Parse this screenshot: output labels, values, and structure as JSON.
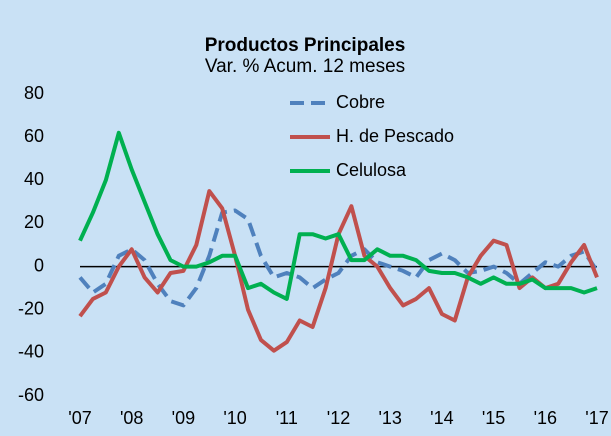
{
  "chart_data": {
    "type": "line",
    "title": "Productos Principales",
    "subtitle": "Var. % Acum. 12 meses",
    "x": [
      2007,
      2007.25,
      2007.5,
      2007.75,
      2008,
      2008.25,
      2008.5,
      2008.75,
      2009,
      2009.25,
      2009.5,
      2009.75,
      2010,
      2010.25,
      2010.5,
      2010.75,
      2011,
      2011.25,
      2011.5,
      2011.75,
      2012,
      2012.25,
      2012.5,
      2012.75,
      2013,
      2013.25,
      2013.5,
      2013.75,
      2014,
      2014.25,
      2014.5,
      2014.75,
      2015,
      2015.25,
      2015.5,
      2015.75,
      2016,
      2016.25,
      2016.5,
      2016.75,
      2017
    ],
    "series": [
      {
        "name": "Cobre",
        "color": "#4f81bd",
        "style": "dashed",
        "values": [
          -5,
          -12,
          -8,
          5,
          8,
          3,
          -8,
          -16,
          -18,
          -10,
          5,
          25,
          26,
          22,
          5,
          -5,
          -3,
          -5,
          -10,
          -6,
          -3,
          5,
          8,
          2,
          0,
          -2,
          -5,
          3,
          6,
          3,
          -3,
          -2,
          0,
          -3,
          -8,
          -3,
          2,
          0,
          5,
          7,
          -2
        ]
      },
      {
        "name": "H. de Pescado",
        "color": "#c0504d",
        "style": "solid",
        "values": [
          -23,
          -15,
          -12,
          0,
          8,
          -5,
          -12,
          -3,
          -2,
          10,
          35,
          27,
          5,
          -20,
          -34,
          -39,
          -35,
          -25,
          -28,
          -10,
          15,
          28,
          5,
          0,
          -10,
          -18,
          -15,
          -10,
          -22,
          -25,
          -5,
          5,
          12,
          10,
          -10,
          -5,
          -10,
          -8,
          2,
          10,
          -5
        ]
      },
      {
        "name": "Celulosa",
        "color": "#00b050",
        "style": "solid",
        "values": [
          12,
          25,
          40,
          62,
          45,
          30,
          15,
          3,
          0,
          0,
          2,
          5,
          5,
          -10,
          -8,
          -12,
          -15,
          15,
          15,
          13,
          15,
          3,
          3,
          8,
          5,
          5,
          3,
          -2,
          -3,
          -3,
          -5,
          -8,
          -5,
          -8,
          -8,
          -6,
          -10,
          -10,
          -10,
          -12,
          -10
        ]
      }
    ],
    "xlim": [
      2007,
      2017
    ],
    "xticks": [
      {
        "value": 2007,
        "label": "'07"
      },
      {
        "value": 2008,
        "label": "'08"
      },
      {
        "value": 2009,
        "label": "'09"
      },
      {
        "value": 2010,
        "label": "'10"
      },
      {
        "value": 2011,
        "label": "'11"
      },
      {
        "value": 2012,
        "label": "'12"
      },
      {
        "value": 2013,
        "label": "'13"
      },
      {
        "value": 2014,
        "label": "'14"
      },
      {
        "value": 2015,
        "label": "'15"
      },
      {
        "value": 2016,
        "label": "'16"
      },
      {
        "value": 2017,
        "label": "'17"
      }
    ],
    "ylim": [
      -60,
      80
    ],
    "yticks": [
      -60,
      -40,
      -20,
      0,
      20,
      40,
      60,
      80
    ],
    "grid": false,
    "legend": "upper center"
  }
}
